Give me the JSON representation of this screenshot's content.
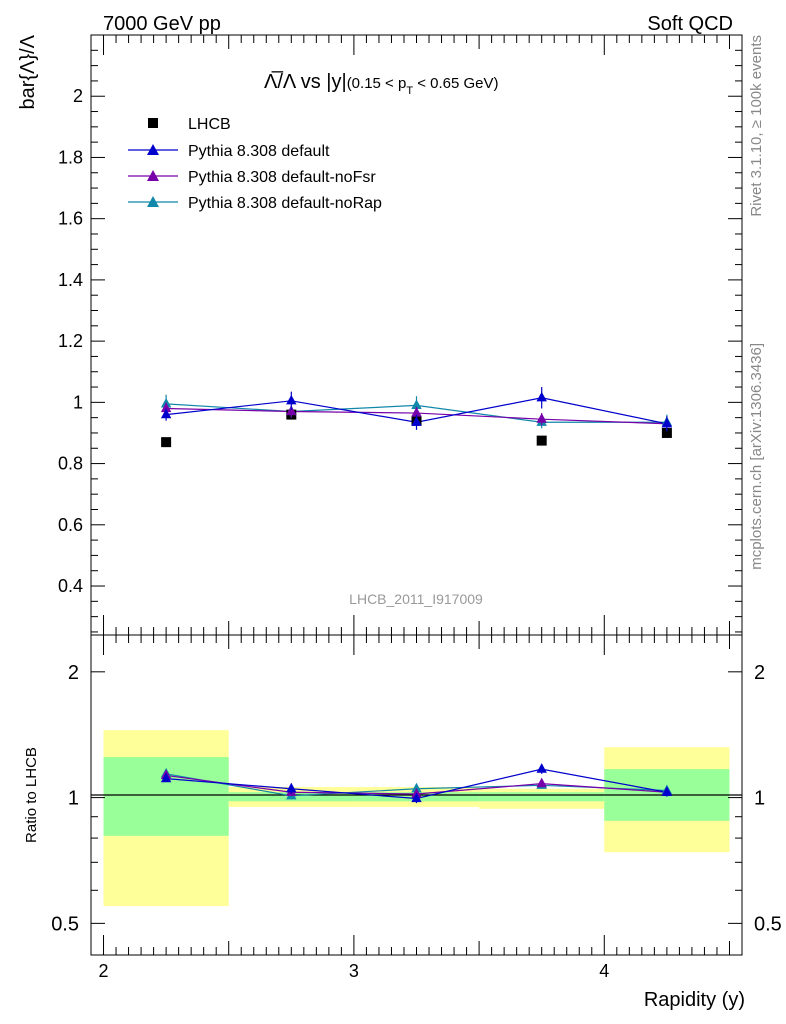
{
  "header": {
    "left_label": "7000 GeV pp",
    "right_label": "Soft QCD"
  },
  "side_labels": {
    "rivet": "Rivet 3.1.10, ≥ 100k events",
    "mcplots": "mcplots.cern.ch [arXiv:1306.3436]"
  },
  "main_panel": {
    "title_main": "Λ̅/Λ vs |y|",
    "title_cut": "(0.15 < p",
    "title_cut_sub": "T",
    "title_cut_end": " < 0.65 GeV)",
    "ylabel": "bar{Λ}/Λ",
    "watermark": "LHCB_2011_I917009",
    "y_ticks": [
      "0.4",
      "0.6",
      "0.8",
      "1",
      "1.2",
      "1.4",
      "1.6",
      "1.8",
      "2"
    ]
  },
  "ratio_panel": {
    "ylabel": "Ratio to LHCB",
    "y_ticks": [
      "0.5",
      "1",
      "2"
    ]
  },
  "x_axis": {
    "label": "Rapidity (y)",
    "ticks": [
      "2",
      "3",
      "4"
    ]
  },
  "colors": {
    "lhcb": "#000000",
    "pythia_default": "#0000cc",
    "pythia_nofsr": "#7700aa",
    "pythia_norap": "#1188aa",
    "band_inner": "#99ff99",
    "band_outer": "#ffff99"
  },
  "chart_data": [
    {
      "type": "scatter",
      "panel": "main",
      "title": "Λ̅/Λ vs |y| (0.15 < pT < 0.65 GeV)",
      "xlabel": "Rapidity (y)",
      "ylabel": "bar{Λ}/Λ",
      "xlim": [
        1.95,
        4.55
      ],
      "ylim": [
        0.24,
        2.2
      ],
      "legend_position": "top-left",
      "grid": false,
      "x": [
        2.25,
        2.75,
        3.25,
        3.75,
        4.25
      ],
      "series": [
        {
          "name": "LHCB",
          "marker": "square",
          "values": [
            0.87,
            0.96,
            0.94,
            0.875,
            0.9
          ]
        },
        {
          "name": "Pythia 8.308 default",
          "marker": "triangle",
          "line": true,
          "values": [
            0.96,
            1.005,
            0.935,
            1.015,
            0.93
          ],
          "errors": [
            0.02,
            0.03,
            0.025,
            0.035,
            0.025
          ]
        },
        {
          "name": "Pythia 8.308 default-noFsr",
          "marker": "triangle",
          "line": true,
          "values": [
            0.98,
            0.97,
            0.965,
            0.945,
            0.93
          ],
          "errors": [
            0.02,
            0.02,
            0.02,
            0.02,
            0.02
          ]
        },
        {
          "name": "Pythia 8.308 default-noRap",
          "marker": "triangle",
          "line": true,
          "values": [
            0.995,
            0.97,
            0.99,
            0.935,
            0.935
          ],
          "errors": [
            0.03,
            0.02,
            0.03,
            0.02,
            0.025
          ]
        }
      ]
    },
    {
      "type": "scatter",
      "panel": "ratio",
      "scale": "log",
      "ylabel": "Ratio to LHCB",
      "xlabel": "Rapidity (y)",
      "xlim": [
        1.95,
        4.55
      ],
      "ylim": [
        0.42,
        2.45
      ],
      "reference_line": 1,
      "x": [
        2.25,
        2.75,
        3.25,
        3.75,
        4.25
      ],
      "uncertainty_bands": [
        {
          "x_range": [
            2.0,
            2.5
          ],
          "inner": [
            0.81,
            1.25
          ],
          "outer": [
            0.55,
            1.45
          ]
        },
        {
          "x_range": [
            2.5,
            3.0
          ],
          "inner": [
            0.98,
            1.03
          ],
          "outer": [
            0.95,
            1.06
          ]
        },
        {
          "x_range": [
            3.0,
            3.5
          ],
          "inner": [
            0.98,
            1.03
          ],
          "outer": [
            0.95,
            1.06
          ]
        },
        {
          "x_range": [
            3.5,
            4.0
          ],
          "inner": [
            0.98,
            1.03
          ],
          "outer": [
            0.94,
            1.05
          ]
        },
        {
          "x_range": [
            4.0,
            4.5
          ],
          "inner": [
            0.88,
            1.17
          ],
          "outer": [
            0.74,
            1.32
          ]
        }
      ],
      "series": [
        {
          "name": "Pythia 8.308 default",
          "values": [
            1.11,
            1.05,
            0.995,
            1.17,
            1.03
          ],
          "errors": [
            0.02,
            0.03,
            0.025,
            0.03,
            0.025
          ]
        },
        {
          "name": "Pythia 8.308 default-noFsr",
          "values": [
            1.13,
            1.03,
            1.02,
            1.08,
            1.03
          ],
          "errors": [
            0.02,
            0.02,
            0.02,
            0.02,
            0.02
          ]
        },
        {
          "name": "Pythia 8.308 default-noRap",
          "values": [
            1.14,
            1.01,
            1.05,
            1.07,
            1.04
          ],
          "errors": [
            0.03,
            0.02,
            0.03,
            0.02,
            0.025
          ]
        }
      ]
    }
  ]
}
